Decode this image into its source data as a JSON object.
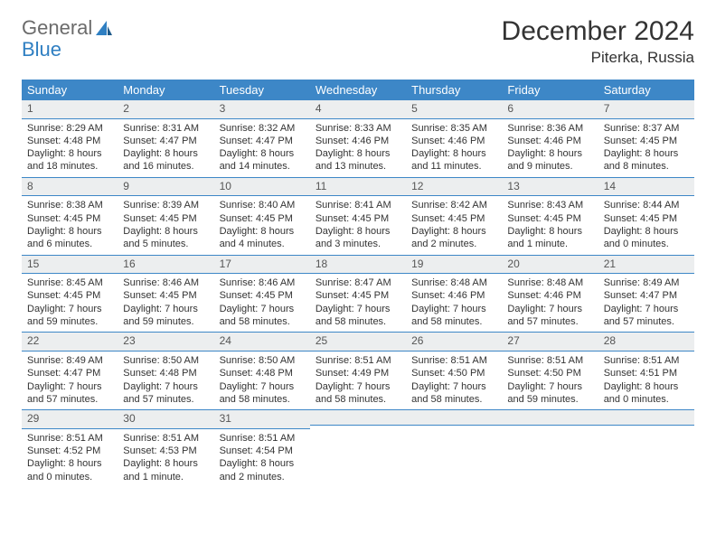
{
  "logo": {
    "text_general": "General",
    "text_blue": "Blue"
  },
  "header": {
    "month_title": "December 2024",
    "location": "Piterka, Russia"
  },
  "colors": {
    "header_bg": "#3d87c7",
    "header_fg": "#ffffff",
    "daynum_bg": "#eceeef",
    "rule": "#3d87c7",
    "text": "#333333",
    "logo_gray": "#6b6b6b",
    "logo_blue": "#2f7fc2"
  },
  "day_headers": [
    "Sunday",
    "Monday",
    "Tuesday",
    "Wednesday",
    "Thursday",
    "Friday",
    "Saturday"
  ],
  "weeks": [
    [
      {
        "n": "1",
        "sr": "Sunrise: 8:29 AM",
        "ss": "Sunset: 4:48 PM",
        "dl": "Daylight: 8 hours and 18 minutes."
      },
      {
        "n": "2",
        "sr": "Sunrise: 8:31 AM",
        "ss": "Sunset: 4:47 PM",
        "dl": "Daylight: 8 hours and 16 minutes."
      },
      {
        "n": "3",
        "sr": "Sunrise: 8:32 AM",
        "ss": "Sunset: 4:47 PM",
        "dl": "Daylight: 8 hours and 14 minutes."
      },
      {
        "n": "4",
        "sr": "Sunrise: 8:33 AM",
        "ss": "Sunset: 4:46 PM",
        "dl": "Daylight: 8 hours and 13 minutes."
      },
      {
        "n": "5",
        "sr": "Sunrise: 8:35 AM",
        "ss": "Sunset: 4:46 PM",
        "dl": "Daylight: 8 hours and 11 minutes."
      },
      {
        "n": "6",
        "sr": "Sunrise: 8:36 AM",
        "ss": "Sunset: 4:46 PM",
        "dl": "Daylight: 8 hours and 9 minutes."
      },
      {
        "n": "7",
        "sr": "Sunrise: 8:37 AM",
        "ss": "Sunset: 4:45 PM",
        "dl": "Daylight: 8 hours and 8 minutes."
      }
    ],
    [
      {
        "n": "8",
        "sr": "Sunrise: 8:38 AM",
        "ss": "Sunset: 4:45 PM",
        "dl": "Daylight: 8 hours and 6 minutes."
      },
      {
        "n": "9",
        "sr": "Sunrise: 8:39 AM",
        "ss": "Sunset: 4:45 PM",
        "dl": "Daylight: 8 hours and 5 minutes."
      },
      {
        "n": "10",
        "sr": "Sunrise: 8:40 AM",
        "ss": "Sunset: 4:45 PM",
        "dl": "Daylight: 8 hours and 4 minutes."
      },
      {
        "n": "11",
        "sr": "Sunrise: 8:41 AM",
        "ss": "Sunset: 4:45 PM",
        "dl": "Daylight: 8 hours and 3 minutes."
      },
      {
        "n": "12",
        "sr": "Sunrise: 8:42 AM",
        "ss": "Sunset: 4:45 PM",
        "dl": "Daylight: 8 hours and 2 minutes."
      },
      {
        "n": "13",
        "sr": "Sunrise: 8:43 AM",
        "ss": "Sunset: 4:45 PM",
        "dl": "Daylight: 8 hours and 1 minute."
      },
      {
        "n": "14",
        "sr": "Sunrise: 8:44 AM",
        "ss": "Sunset: 4:45 PM",
        "dl": "Daylight: 8 hours and 0 minutes."
      }
    ],
    [
      {
        "n": "15",
        "sr": "Sunrise: 8:45 AM",
        "ss": "Sunset: 4:45 PM",
        "dl": "Daylight: 7 hours and 59 minutes."
      },
      {
        "n": "16",
        "sr": "Sunrise: 8:46 AM",
        "ss": "Sunset: 4:45 PM",
        "dl": "Daylight: 7 hours and 59 minutes."
      },
      {
        "n": "17",
        "sr": "Sunrise: 8:46 AM",
        "ss": "Sunset: 4:45 PM",
        "dl": "Daylight: 7 hours and 58 minutes."
      },
      {
        "n": "18",
        "sr": "Sunrise: 8:47 AM",
        "ss": "Sunset: 4:45 PM",
        "dl": "Daylight: 7 hours and 58 minutes."
      },
      {
        "n": "19",
        "sr": "Sunrise: 8:48 AM",
        "ss": "Sunset: 4:46 PM",
        "dl": "Daylight: 7 hours and 58 minutes."
      },
      {
        "n": "20",
        "sr": "Sunrise: 8:48 AM",
        "ss": "Sunset: 4:46 PM",
        "dl": "Daylight: 7 hours and 57 minutes."
      },
      {
        "n": "21",
        "sr": "Sunrise: 8:49 AM",
        "ss": "Sunset: 4:47 PM",
        "dl": "Daylight: 7 hours and 57 minutes."
      }
    ],
    [
      {
        "n": "22",
        "sr": "Sunrise: 8:49 AM",
        "ss": "Sunset: 4:47 PM",
        "dl": "Daylight: 7 hours and 57 minutes."
      },
      {
        "n": "23",
        "sr": "Sunrise: 8:50 AM",
        "ss": "Sunset: 4:48 PM",
        "dl": "Daylight: 7 hours and 57 minutes."
      },
      {
        "n": "24",
        "sr": "Sunrise: 8:50 AM",
        "ss": "Sunset: 4:48 PM",
        "dl": "Daylight: 7 hours and 58 minutes."
      },
      {
        "n": "25",
        "sr": "Sunrise: 8:51 AM",
        "ss": "Sunset: 4:49 PM",
        "dl": "Daylight: 7 hours and 58 minutes."
      },
      {
        "n": "26",
        "sr": "Sunrise: 8:51 AM",
        "ss": "Sunset: 4:50 PM",
        "dl": "Daylight: 7 hours and 58 minutes."
      },
      {
        "n": "27",
        "sr": "Sunrise: 8:51 AM",
        "ss": "Sunset: 4:50 PM",
        "dl": "Daylight: 7 hours and 59 minutes."
      },
      {
        "n": "28",
        "sr": "Sunrise: 8:51 AM",
        "ss": "Sunset: 4:51 PM",
        "dl": "Daylight: 8 hours and 0 minutes."
      }
    ],
    [
      {
        "n": "29",
        "sr": "Sunrise: 8:51 AM",
        "ss": "Sunset: 4:52 PM",
        "dl": "Daylight: 8 hours and 0 minutes."
      },
      {
        "n": "30",
        "sr": "Sunrise: 8:51 AM",
        "ss": "Sunset: 4:53 PM",
        "dl": "Daylight: 8 hours and 1 minute."
      },
      {
        "n": "31",
        "sr": "Sunrise: 8:51 AM",
        "ss": "Sunset: 4:54 PM",
        "dl": "Daylight: 8 hours and 2 minutes."
      },
      null,
      null,
      null,
      null
    ]
  ]
}
